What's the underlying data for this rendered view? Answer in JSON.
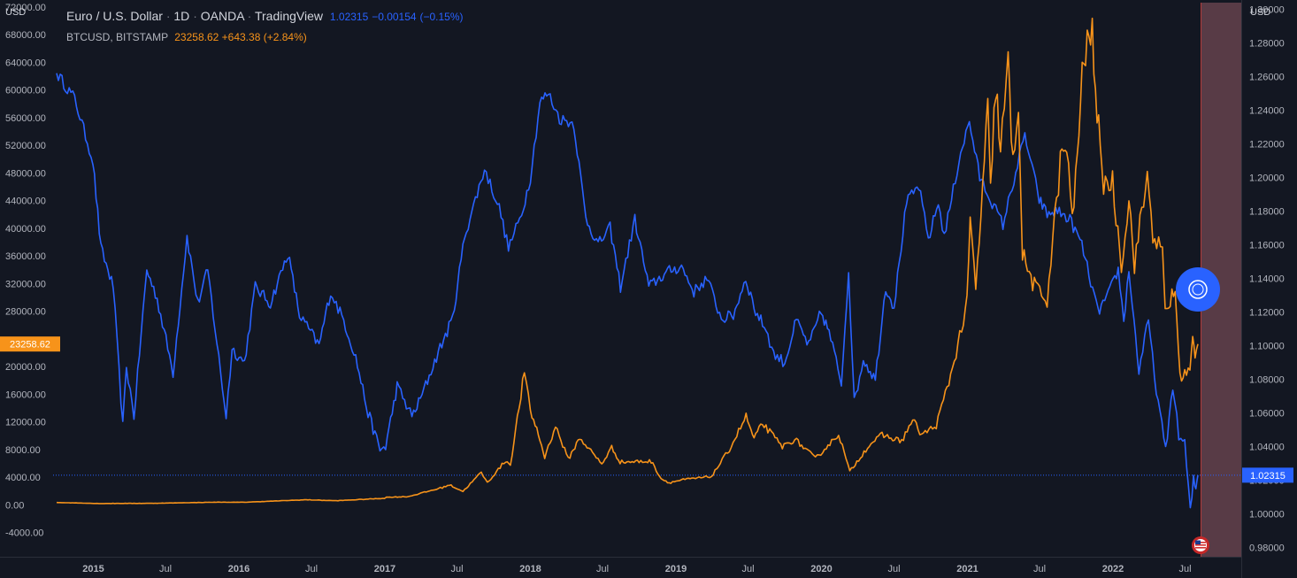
{
  "header": {
    "symbol_title": "Euro / U.S. Dollar",
    "interval": "1D",
    "exchange": "OANDA",
    "platform": "TradingView",
    "last": "1.02315",
    "change": "−0.00154",
    "change_pct": "(−0.15%)",
    "compare_symbol": "BTCUSD, BITSTAMP",
    "compare_last": "23258.62",
    "compare_change": "+643.38",
    "compare_change_pct": "(+2.84%)"
  },
  "axes": {
    "left_unit": "USD",
    "right_unit": "USD"
  },
  "labels": {
    "eur_last": "1.02315",
    "btc_last": "23258.62"
  },
  "colors": {
    "background": "#131722",
    "eurusd": "#2962ff",
    "btcusd": "#f7931a",
    "text": "#b2b5be",
    "future_zone": "#5c3d49",
    "future_edge": "#b33a3a"
  },
  "icons": {
    "drawing_tool": "target-circle-icon",
    "event_marker": "us-flag-icon"
  },
  "chart_data": {
    "type": "line",
    "title": "Euro / U.S. Dollar · 1D · OANDA · TradingView",
    "grid": false,
    "x_ticks": [
      "2015",
      "Jul",
      "2016",
      "Jul",
      "2017",
      "Jul",
      "2018",
      "Jul",
      "2019",
      "Jul",
      "2020",
      "Jul",
      "2021",
      "Jul",
      "2022",
      "Jul"
    ],
    "x_tick_dates": [
      "2015-01-01",
      "2015-07-01",
      "2016-01-01",
      "2016-07-01",
      "2017-01-01",
      "2017-07-01",
      "2018-01-01",
      "2018-07-01",
      "2019-01-01",
      "2019-07-01",
      "2020-01-01",
      "2020-07-01",
      "2021-01-01",
      "2021-07-01",
      "2022-01-01",
      "2022-07-01"
    ],
    "y_left": {
      "label": "USD",
      "range": [
        -7500,
        73000
      ],
      "ticks": [
        -4000,
        0,
        4000,
        8000,
        12000,
        16000,
        20000,
        28000,
        32000,
        36000,
        40000,
        44000,
        48000,
        52000,
        56000,
        60000,
        64000,
        68000,
        72000
      ]
    },
    "y_right": {
      "label": "USD",
      "range": [
        0.9745,
        1.3055
      ],
      "ticks": [
        0.98,
        1.0,
        1.02,
        1.04,
        1.06,
        1.08,
        1.1,
        1.12,
        1.14,
        1.16,
        1.18,
        1.2,
        1.22,
        1.24,
        1.26,
        1.28,
        1.3
      ]
    },
    "series": [
      {
        "name": "EURUSD",
        "axis": "right",
        "color": "#2962ff",
        "points": [
          [
            "2014-10-01",
            1.262
          ],
          [
            "2014-11-15",
            1.247
          ],
          [
            "2014-12-31",
            1.21
          ],
          [
            "2015-01-20",
            1.158
          ],
          [
            "2015-02-20",
            1.135
          ],
          [
            "2015-03-16",
            1.052
          ],
          [
            "2015-03-25",
            1.088
          ],
          [
            "2015-04-13",
            1.058
          ],
          [
            "2015-05-15",
            1.145
          ],
          [
            "2015-06-10",
            1.128
          ],
          [
            "2015-07-20",
            1.084
          ],
          [
            "2015-08-24",
            1.165
          ],
          [
            "2015-09-20",
            1.125
          ],
          [
            "2015-10-15",
            1.145
          ],
          [
            "2015-11-30",
            1.058
          ],
          [
            "2015-12-15",
            1.098
          ],
          [
            "2016-01-15",
            1.09
          ],
          [
            "2016-02-11",
            1.135
          ],
          [
            "2016-03-20",
            1.125
          ],
          [
            "2016-05-03",
            1.155
          ],
          [
            "2016-06-01",
            1.118
          ],
          [
            "2016-06-24",
            1.11
          ],
          [
            "2016-07-20",
            1.1
          ],
          [
            "2016-08-18",
            1.132
          ],
          [
            "2016-09-20",
            1.115
          ],
          [
            "2016-10-20",
            1.093
          ],
          [
            "2016-11-20",
            1.06
          ],
          [
            "2016-12-20",
            1.038
          ],
          [
            "2017-01-03",
            1.04
          ],
          [
            "2017-02-01",
            1.076
          ],
          [
            "2017-03-10",
            1.058
          ],
          [
            "2017-03-31",
            1.068
          ],
          [
            "2017-05-15",
            1.096
          ],
          [
            "2017-06-20",
            1.116
          ],
          [
            "2017-07-20",
            1.165
          ],
          [
            "2017-09-08",
            1.205
          ],
          [
            "2017-10-15",
            1.182
          ],
          [
            "2017-11-07",
            1.158
          ],
          [
            "2017-12-10",
            1.178
          ],
          [
            "2018-01-01",
            1.2
          ],
          [
            "2018-01-25",
            1.245
          ],
          [
            "2018-02-15",
            1.25
          ],
          [
            "2018-03-15",
            1.235
          ],
          [
            "2018-04-20",
            1.232
          ],
          [
            "2018-05-20",
            1.176
          ],
          [
            "2018-06-20",
            1.16
          ],
          [
            "2018-07-20",
            1.17
          ],
          [
            "2018-08-15",
            1.135
          ],
          [
            "2018-09-20",
            1.175
          ],
          [
            "2018-10-25",
            1.135
          ],
          [
            "2018-11-20",
            1.14
          ],
          [
            "2018-12-20",
            1.145
          ],
          [
            "2019-01-15",
            1.147
          ],
          [
            "2019-02-15",
            1.132
          ],
          [
            "2019-03-20",
            1.14
          ],
          [
            "2019-04-25",
            1.116
          ],
          [
            "2019-05-25",
            1.118
          ],
          [
            "2019-06-25",
            1.14
          ],
          [
            "2019-07-20",
            1.12
          ],
          [
            "2019-08-15",
            1.11
          ],
          [
            "2019-09-03",
            1.095
          ],
          [
            "2019-10-01",
            1.09
          ],
          [
            "2019-10-30",
            1.115
          ],
          [
            "2019-11-30",
            1.1
          ],
          [
            "2019-12-31",
            1.12
          ],
          [
            "2020-01-20",
            1.108
          ],
          [
            "2020-02-20",
            1.078
          ],
          [
            "2020-03-09",
            1.145
          ],
          [
            "2020-03-23",
            1.066
          ],
          [
            "2020-04-15",
            1.092
          ],
          [
            "2020-05-15",
            1.08
          ],
          [
            "2020-06-10",
            1.135
          ],
          [
            "2020-07-01",
            1.123
          ],
          [
            "2020-08-01",
            1.185
          ],
          [
            "2020-09-01",
            1.195
          ],
          [
            "2020-09-25",
            1.163
          ],
          [
            "2020-10-20",
            1.185
          ],
          [
            "2020-11-04",
            1.165
          ],
          [
            "2020-12-15",
            1.215
          ],
          [
            "2021-01-06",
            1.233
          ],
          [
            "2021-02-01",
            1.2
          ],
          [
            "2021-03-31",
            1.172
          ],
          [
            "2021-05-25",
            1.225
          ],
          [
            "2021-06-30",
            1.187
          ],
          [
            "2021-07-20",
            1.178
          ],
          [
            "2021-08-15",
            1.18
          ],
          [
            "2021-09-15",
            1.175
          ],
          [
            "2021-10-15",
            1.16
          ],
          [
            "2021-11-24",
            1.12
          ],
          [
            "2021-12-20",
            1.13
          ],
          [
            "2022-01-14",
            1.145
          ],
          [
            "2022-01-28",
            1.115
          ],
          [
            "2022-02-10",
            1.145
          ],
          [
            "2022-03-07",
            1.085
          ],
          [
            "2022-03-31",
            1.115
          ],
          [
            "2022-04-15",
            1.082
          ],
          [
            "2022-05-13",
            1.037
          ],
          [
            "2022-05-31",
            1.077
          ],
          [
            "2022-06-15",
            1.046
          ],
          [
            "2022-06-30",
            1.042
          ],
          [
            "2022-07-14",
            1.001
          ],
          [
            "2022-07-22",
            1.02
          ],
          [
            "2022-07-28",
            1.015
          ],
          [
            "2022-08-02",
            1.023
          ]
        ]
      },
      {
        "name": "BTCUSD",
        "axis": "left",
        "color": "#f7931a",
        "points": [
          [
            "2014-10-01",
            350
          ],
          [
            "2015-01-15",
            200
          ],
          [
            "2015-06-01",
            230
          ],
          [
            "2015-11-05",
            390
          ],
          [
            "2016-01-15",
            380
          ],
          [
            "2016-06-18",
            740
          ],
          [
            "2016-09-01",
            600
          ],
          [
            "2016-12-31",
            960
          ],
          [
            "2017-01-05",
            1100
          ],
          [
            "2017-03-01",
            1200
          ],
          [
            "2017-05-25",
            2500
          ],
          [
            "2017-06-12",
            2900
          ],
          [
            "2017-07-16",
            1950
          ],
          [
            "2017-08-31",
            4700
          ],
          [
            "2017-09-15",
            3200
          ],
          [
            "2017-10-31",
            6400
          ],
          [
            "2017-11-12",
            5800
          ],
          [
            "2017-12-17",
            19200
          ],
          [
            "2018-01-01",
            13500
          ],
          [
            "2018-01-17",
            11000
          ],
          [
            "2018-02-06",
            6900
          ],
          [
            "2018-03-05",
            11400
          ],
          [
            "2018-04-06",
            6600
          ],
          [
            "2018-05-05",
            9700
          ],
          [
            "2018-06-29",
            5900
          ],
          [
            "2018-07-24",
            8300
          ],
          [
            "2018-08-14",
            6200
          ],
          [
            "2018-10-31",
            6300
          ],
          [
            "2018-11-25",
            3800
          ],
          [
            "2018-12-15",
            3200
          ],
          [
            "2019-01-15",
            3600
          ],
          [
            "2019-03-31",
            4100
          ],
          [
            "2019-05-15",
            8000
          ],
          [
            "2019-06-26",
            12800
          ],
          [
            "2019-07-16",
            9500
          ],
          [
            "2019-08-06",
            11800
          ],
          [
            "2019-09-25",
            8400
          ],
          [
            "2019-10-26",
            9500
          ],
          [
            "2019-12-17",
            6700
          ],
          [
            "2020-01-31",
            9400
          ],
          [
            "2020-02-13",
            10300
          ],
          [
            "2020-03-12",
            4800
          ],
          [
            "2020-04-30",
            8700
          ],
          [
            "2020-06-01",
            10100
          ],
          [
            "2020-07-20",
            9200
          ],
          [
            "2020-08-17",
            12300
          ],
          [
            "2020-09-08",
            10100
          ],
          [
            "2020-10-15",
            11500
          ],
          [
            "2020-11-20",
            18700
          ],
          [
            "2020-12-31",
            29000
          ],
          [
            "2021-01-08",
            41000
          ],
          [
            "2021-01-22",
            31000
          ],
          [
            "2021-02-21",
            57000
          ],
          [
            "2021-02-28",
            45000
          ],
          [
            "2021-03-13",
            61000
          ],
          [
            "2021-03-25",
            51000
          ],
          [
            "2021-04-13",
            63500
          ],
          [
            "2021-04-25",
            49000
          ],
          [
            "2021-05-09",
            59000
          ],
          [
            "2021-05-19",
            36000
          ],
          [
            "2021-06-22",
            31000
          ],
          [
            "2021-07-20",
            29800
          ],
          [
            "2021-08-22",
            49500
          ],
          [
            "2021-09-07",
            52000
          ],
          [
            "2021-09-21",
            40500
          ],
          [
            "2021-10-20",
            65000
          ],
          [
            "2021-11-10",
            68000
          ],
          [
            "2021-11-26",
            54000
          ],
          [
            "2021-12-04",
            47000
          ],
          [
            "2021-12-31",
            46500
          ],
          [
            "2022-01-22",
            35000
          ],
          [
            "2022-02-10",
            44000
          ],
          [
            "2022-02-24",
            35000
          ],
          [
            "2022-03-28",
            47500
          ],
          [
            "2022-04-11",
            39500
          ],
          [
            "2022-05-05",
            36000
          ],
          [
            "2022-05-12",
            28000
          ],
          [
            "2022-06-06",
            31000
          ],
          [
            "2022-06-18",
            18500
          ],
          [
            "2022-06-30",
            19000
          ],
          [
            "2022-07-13",
            19500
          ],
          [
            "2022-07-20",
            23900
          ],
          [
            "2022-07-26",
            21000
          ],
          [
            "2022-08-02",
            23258.62
          ]
        ]
      }
    ]
  }
}
